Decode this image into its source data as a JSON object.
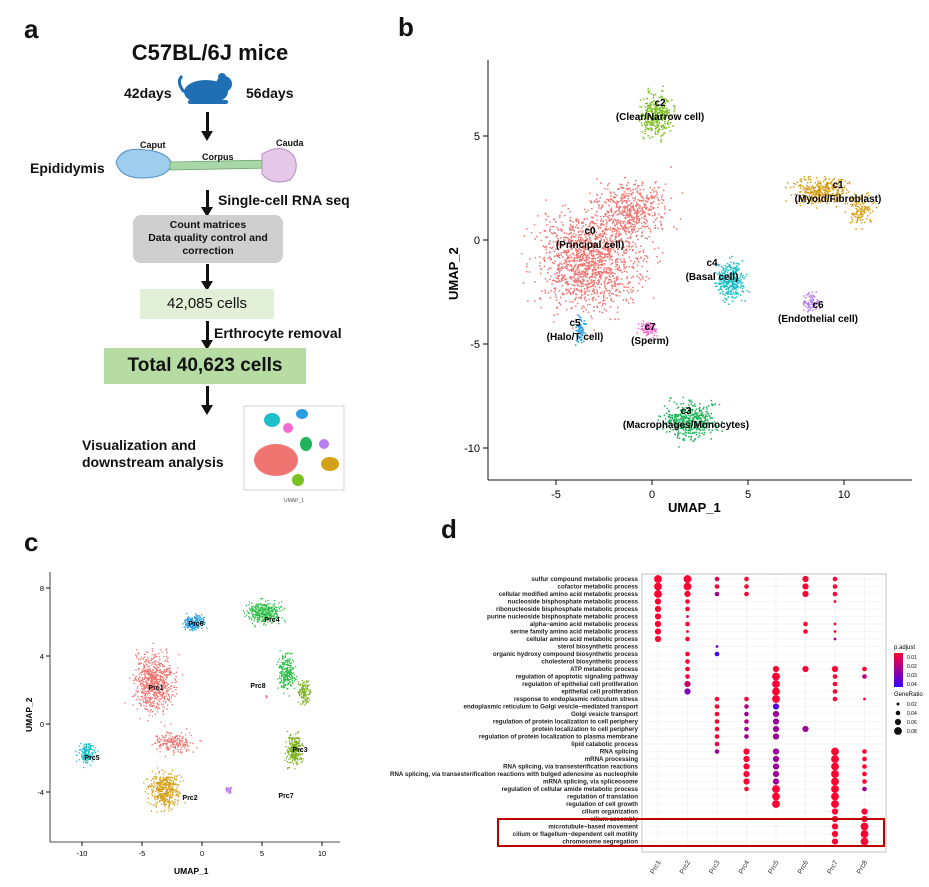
{
  "panels": {
    "a": "a",
    "b": "b",
    "c": "c",
    "d": "d"
  },
  "panel_a": {
    "title": "C57BL/6J mice",
    "age_left": "42days",
    "age_right": "56days",
    "tissue": "Epididymis",
    "regions": {
      "caput": "Caput",
      "corpus": "Corpus",
      "cauda": "Cauda"
    },
    "step_seq": "Single-cell RNA seq",
    "box_matrices": "Count matrices\nData quality control and correction",
    "box_matrices_l1": "Count matrices",
    "box_matrices_l2": "Data quality control and",
    "box_matrices_l3": "correction",
    "cells_raw": "42,085  cells",
    "step_removal": "Erthrocyte removal",
    "cells_total": "Total 40,623  cells",
    "vis_l1": "Visualization and",
    "vis_l2": "downstream analysis",
    "colors": {
      "mouse": "#1f6fb5",
      "box_gray": "#cfcfcf",
      "box_green_light": "#e3f0d8",
      "box_green": "#b6dcA4"
    }
  },
  "panel_b": {
    "xlabel": "UMAP_1",
    "ylabel": "UMAP_2",
    "xticks": [
      "-5",
      "0",
      "5",
      "10"
    ],
    "yticks": [
      "5",
      "0",
      "-5",
      "-10"
    ],
    "clusters": [
      {
        "id": "c0",
        "name": "(Principal cell)",
        "color": "#f07470"
      },
      {
        "id": "c1",
        "name": "(Myoid/Fibroblast)",
        "color": "#d4a017"
      },
      {
        "id": "c2",
        "name": "(Clear/Narrow cell)",
        "color": "#7cc022"
      },
      {
        "id": "c3",
        "name": "(Macrophages/Monocytes)",
        "color": "#1fb35a"
      },
      {
        "id": "c4",
        "name": "(Basal cell)",
        "color": "#1fc0c8"
      },
      {
        "id": "c5",
        "name": "(Halo/T cell)",
        "color": "#2a9de0"
      },
      {
        "id": "c6",
        "name": "(Endothelial cell)",
        "color": "#b97ff0"
      },
      {
        "id": "c7",
        "name": "(Sperm)",
        "color": "#f06ad0"
      }
    ]
  },
  "panel_c": {
    "xlabel": "UMAP_1",
    "ylabel": "UMAP_2",
    "xticks": [
      "-10",
      "-5",
      "0",
      "5",
      "10"
    ],
    "yticks": [
      "8",
      "4",
      "0",
      "-4"
    ],
    "clusters": [
      {
        "id": "Prc1",
        "color": "#f07470"
      },
      {
        "id": "Prc2",
        "color": "#d4a017"
      },
      {
        "id": "Prc3",
        "color": "#7cb020"
      },
      {
        "id": "Prc4",
        "color": "#2fbf4a"
      },
      {
        "id": "Prc5",
        "color": "#1fc0c8"
      },
      {
        "id": "Prc6",
        "color": "#2a9de0"
      },
      {
        "id": "Prc7",
        "color": "#b97ff0"
      },
      {
        "id": "Prc8",
        "color": "#f06ad0"
      }
    ]
  },
  "panel_d": {
    "columns": [
      "Prc1",
      "Prc2",
      "Prc3",
      "Prc4",
      "Prc5",
      "Prc6",
      "Prc7",
      "Prc8"
    ],
    "terms": [
      "sulfur compound metabolic process",
      "cofactor metabolic process",
      "cellular modified amino acid metabolic process",
      "nucleoside bisphosphate metabolic process",
      "ribonucleoside bisphosphate metabolic process",
      "purine nucleoside bisphosphate metabolic process",
      "alpha−amino acid metabolic process",
      "serine family amino acid metabolic process",
      "cellular amino acid metabolic process",
      "sterol biosynthetic process",
      "organic hydroxy compound biosynthetic process",
      "cholesterol biosynthetic process",
      "ATP metabolic process",
      "regulation of apoptotic signaling pathway",
      "regulation of epithelial cell proliferation",
      "epithelial cell proliferation",
      "response to endoplasmic reticulum stress",
      "endoplasmic reticulum to Golgi vesicle−mediated transport",
      "Golgi vesicle transport",
      "regulation of protein localization to cell periphery",
      "protein localization to cell periphery",
      "regulation of protein localization to plasma membrane",
      "lipid catabolic process",
      "RNA splicing",
      "mRNA processing",
      "RNA splicing, via transesterification reactions",
      "RNA splicing, via transesterification reactions with bulged adenosine as nucleophile",
      "mRNA splicing, via spliceosome",
      "regulation of cellular amide metabolic process",
      "regulation of translation",
      "regulation of cell growth",
      "cilium organization",
      "cilium assembly",
      "microtubule−based movement",
      "cilium or flagellum−dependent cell motility",
      "chromosome segregation"
    ],
    "dots": [
      [
        0,
        0,
        4,
        0.01
      ],
      [
        0,
        1,
        4,
        0.01
      ],
      [
        0,
        2,
        4,
        0.01
      ],
      [
        0,
        3,
        3,
        0.01
      ],
      [
        0,
        4,
        3,
        0.01
      ],
      [
        0,
        5,
        3,
        0.01
      ],
      [
        0,
        6,
        3,
        0.01
      ],
      [
        0,
        7,
        3,
        0.01
      ],
      [
        0,
        8,
        3,
        0.01
      ],
      [
        1,
        0,
        4,
        0.01
      ],
      [
        1,
        1,
        4,
        0.01
      ],
      [
        1,
        2,
        3,
        0.01
      ],
      [
        1,
        3,
        2,
        0.01
      ],
      [
        1,
        4,
        2,
        0.01
      ],
      [
        1,
        5,
        1,
        0.02
      ],
      [
        1,
        6,
        2,
        0.01
      ],
      [
        1,
        7,
        1,
        0.01
      ],
      [
        1,
        8,
        2,
        0.01
      ],
      [
        1,
        10,
        2,
        0.01
      ],
      [
        1,
        11,
        2,
        0.01
      ],
      [
        1,
        12,
        2,
        0.01
      ],
      [
        1,
        13,
        2,
        0.012
      ],
      [
        1,
        14,
        3,
        0.02
      ],
      [
        1,
        15,
        3,
        0.035
      ],
      [
        2,
        0,
        2,
        0.015
      ],
      [
        2,
        1,
        2,
        0.01
      ],
      [
        2,
        2,
        2,
        0.03
      ],
      [
        2,
        9,
        1,
        0.04
      ],
      [
        2,
        10,
        2,
        0.05
      ],
      [
        2,
        16,
        2,
        0.01
      ],
      [
        2,
        17,
        2,
        0.01
      ],
      [
        2,
        18,
        2,
        0.01
      ],
      [
        2,
        19,
        2,
        0.01
      ],
      [
        2,
        20,
        2,
        0.01
      ],
      [
        2,
        21,
        2,
        0.01
      ],
      [
        2,
        22,
        2,
        0.015
      ],
      [
        2,
        23,
        2,
        0.03
      ],
      [
        3,
        0,
        2,
        0.01
      ],
      [
        3,
        1,
        2,
        0.01
      ],
      [
        3,
        2,
        2,
        0.01
      ],
      [
        3,
        16,
        2,
        0.012
      ],
      [
        3,
        17,
        2,
        0.025
      ],
      [
        3,
        18,
        2,
        0.03
      ],
      [
        3,
        19,
        2,
        0.025
      ],
      [
        3,
        20,
        2,
        0.03
      ],
      [
        3,
        21,
        2,
        0.03
      ],
      [
        3,
        23,
        3,
        0.01
      ],
      [
        3,
        24,
        3,
        0.01
      ],
      [
        3,
        25,
        3,
        0.01
      ],
      [
        3,
        26,
        3,
        0.01
      ],
      [
        3,
        27,
        3,
        0.01
      ],
      [
        3,
        28,
        2,
        0.01
      ],
      [
        4,
        12,
        3,
        0.01
      ],
      [
        4,
        13,
        4,
        0.01
      ],
      [
        4,
        14,
        4,
        0.01
      ],
      [
        4,
        15,
        4,
        0.01
      ],
      [
        4,
        16,
        4,
        0.01
      ],
      [
        4,
        17,
        3,
        0.045
      ],
      [
        4,
        18,
        3,
        0.03
      ],
      [
        4,
        19,
        3,
        0.03
      ],
      [
        4,
        20,
        3,
        0.03
      ],
      [
        4,
        21,
        3,
        0.03
      ],
      [
        4,
        23,
        3,
        0.03
      ],
      [
        4,
        24,
        3,
        0.03
      ],
      [
        4,
        25,
        3,
        0.03
      ],
      [
        4,
        26,
        3,
        0.03
      ],
      [
        4,
        27,
        3,
        0.03
      ],
      [
        4,
        28,
        4,
        0.01
      ],
      [
        4,
        29,
        4,
        0.01
      ],
      [
        4,
        30,
        4,
        0.01
      ],
      [
        5,
        0,
        3,
        0.01
      ],
      [
        5,
        1,
        3,
        0.01
      ],
      [
        5,
        2,
        3,
        0.01
      ],
      [
        5,
        6,
        2,
        0.01
      ],
      [
        5,
        7,
        2,
        0.01
      ],
      [
        5,
        12,
        3,
        0.01
      ],
      [
        5,
        20,
        3,
        0.03
      ],
      [
        6,
        0,
        2,
        0.01
      ],
      [
        6,
        1,
        2,
        0.01
      ],
      [
        6,
        2,
        2,
        0.01
      ],
      [
        6,
        3,
        1,
        0.01
      ],
      [
        6,
        6,
        1,
        0.01
      ],
      [
        6,
        7,
        1,
        0.01
      ],
      [
        6,
        8,
        1,
        0.03
      ],
      [
        6,
        12,
        3,
        0.01
      ],
      [
        6,
        13,
        2,
        0.01
      ],
      [
        6,
        14,
        2,
        0.01
      ],
      [
        6,
        15,
        2,
        0.01
      ],
      [
        6,
        16,
        2,
        0.01
      ],
      [
        6,
        23,
        4,
        0.01
      ],
      [
        6,
        24,
        4,
        0.01
      ],
      [
        6,
        25,
        4,
        0.01
      ],
      [
        6,
        26,
        4,
        0.01
      ],
      [
        6,
        27,
        4,
        0.01
      ],
      [
        6,
        28,
        4,
        0.01
      ],
      [
        6,
        29,
        4,
        0.01
      ],
      [
        6,
        30,
        4,
        0.01
      ],
      [
        6,
        31,
        3,
        0.01
      ],
      [
        6,
        32,
        3,
        0.01
      ],
      [
        6,
        33,
        3,
        0.01
      ],
      [
        6,
        34,
        3,
        0.01
      ],
      [
        6,
        35,
        3,
        0.01
      ],
      [
        7,
        12,
        2,
        0.01
      ],
      [
        7,
        13,
        2,
        0.025
      ],
      [
        7,
        16,
        1,
        0.01
      ],
      [
        7,
        23,
        2,
        0.01
      ],
      [
        7,
        24,
        2,
        0.01
      ],
      [
        7,
        25,
        2,
        0.01
      ],
      [
        7,
        26,
        2,
        0.01
      ],
      [
        7,
        27,
        2,
        0.01
      ],
      [
        7,
        28,
        2,
        0.03
      ],
      [
        7,
        31,
        3,
        0.01
      ],
      [
        7,
        32,
        3,
        0.01
      ],
      [
        7,
        33,
        4,
        0.01
      ],
      [
        7,
        34,
        4,
        0.01
      ],
      [
        7,
        35,
        4,
        0.01
      ]
    ],
    "legend_padjust": {
      "title": "p.adjust",
      "ticks": [
        "0.01",
        "0.02",
        "0.03",
        "0.04"
      ],
      "colors": [
        "#ff0033",
        "#3a00ff"
      ]
    },
    "legend_generatio": {
      "title": "GeneRatio",
      "ticks": [
        "0.02",
        "0.04",
        "0.06",
        "0.08"
      ]
    },
    "highlight_color": "#c00000"
  }
}
